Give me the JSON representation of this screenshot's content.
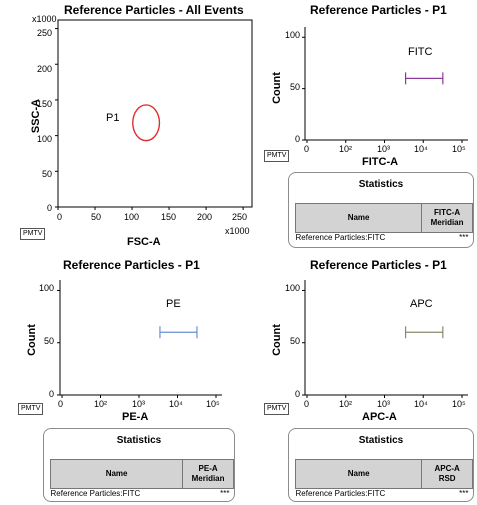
{
  "plots": {
    "scatter": {
      "title": "Reference Particles - All Events",
      "xlabel": "FSC-A",
      "ylabel": "SSC-A",
      "x_multiplier": "x1000",
      "y_multiplier": "x1000",
      "x_ticks": [
        "0",
        "50",
        "100",
        "150",
        "200",
        "250"
      ],
      "y_ticks": [
        "0",
        "50",
        "100",
        "150",
        "200",
        "250"
      ],
      "gate_label": "P1",
      "gate_color": "#e03030",
      "pmtv": "PMTV"
    },
    "fitc": {
      "title": "Reference Particles - P1",
      "xlabel": "FITC-A",
      "ylabel": "Count",
      "x_ticks": [
        "0",
        "10²",
        "10³",
        "10⁴",
        "10⁵"
      ],
      "y_ticks": [
        "0",
        "50",
        "100"
      ],
      "marker_label": "FITC",
      "marker_color": "#8a3a9a",
      "pmtv": "PMTV"
    },
    "pe": {
      "title": "Reference Particles - P1",
      "xlabel": "PE-A",
      "ylabel": "Count",
      "x_ticks": [
        "0",
        "10²",
        "10³",
        "10⁴",
        "10⁵"
      ],
      "y_ticks": [
        "0",
        "50",
        "100"
      ],
      "marker_label": "PE",
      "marker_color": "#6a8fd0",
      "pmtv": "PMTV"
    },
    "apc": {
      "title": "Reference Particles - P1",
      "xlabel": "APC-A",
      "ylabel": "Count",
      "x_ticks": [
        "0",
        "10²",
        "10³",
        "10⁴",
        "10⁵"
      ],
      "y_ticks": [
        "0",
        "50",
        "100"
      ],
      "marker_label": "APC",
      "marker_color": "#8a8a6a",
      "pmtv": "PMTV"
    }
  },
  "stats": {
    "fitc": {
      "title": "Statistics",
      "col_name": "Name",
      "col_stat_line1": "FITC-A",
      "col_stat_line2": "Meridian",
      "row_name": "Reference Particles:FITC",
      "row_value": "***"
    },
    "pe": {
      "title": "Statistics",
      "col_name": "Name",
      "col_stat_line1": "PE-A",
      "col_stat_line2": "Meridian",
      "row_name": "Reference Particles:FITC",
      "row_value": "***"
    },
    "apc": {
      "title": "Statistics",
      "col_name": "Name",
      "col_stat_line1": "APC-A",
      "col_stat_line2": "RSD",
      "row_name": "Reference Particles:FITC",
      "row_value": "***"
    }
  },
  "chart_data": [
    {
      "type": "scatter",
      "title": "Reference Particles - All Events",
      "xlabel": "FSC-A",
      "ylabel": "SSC-A",
      "xlim": [
        0,
        262
      ],
      "ylim": [
        0,
        262
      ],
      "x_units": "x1000",
      "y_units": "x1000",
      "gates": [
        {
          "name": "P1",
          "shape": "ellipse",
          "center": [
            119,
            118
          ],
          "radius": [
            18,
            25
          ]
        }
      ]
    },
    {
      "type": "line",
      "title": "Reference Particles - P1",
      "xlabel": "FITC-A",
      "ylabel": "Count",
      "x_scale": "log",
      "ylim": [
        0,
        110
      ],
      "markers": [
        {
          "name": "FITC",
          "range": [
            3500,
            32000
          ],
          "y": 60
        }
      ]
    },
    {
      "type": "line",
      "title": "Reference Particles - P1",
      "xlabel": "PE-A",
      "ylabel": "Count",
      "x_scale": "log",
      "ylim": [
        0,
        110
      ],
      "markers": [
        {
          "name": "PE",
          "range": [
            3500,
            32000
          ],
          "y": 60
        }
      ]
    },
    {
      "type": "line",
      "title": "Reference Particles - P1",
      "xlabel": "APC-A",
      "ylabel": "Count",
      "x_scale": "log",
      "ylim": [
        0,
        110
      ],
      "markers": [
        {
          "name": "APC",
          "range": [
            3500,
            32000
          ],
          "y": 60
        }
      ]
    }
  ]
}
